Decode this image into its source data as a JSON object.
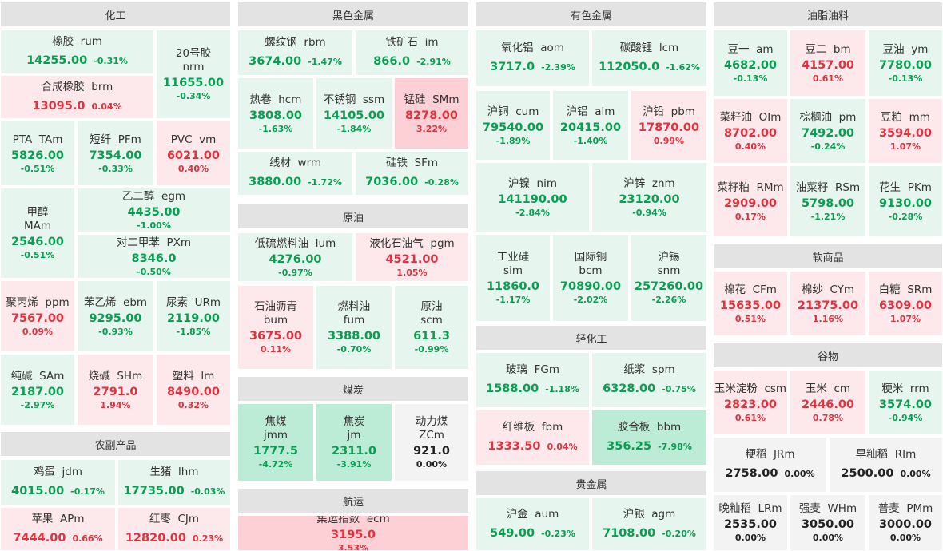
{
  "sections": {
    "chem": "化工",
    "agri": "农副产品",
    "ferrous": "黑色金属",
    "oil": "原油",
    "coal": "煤炭",
    "ship": "航运",
    "nonferrous": "有色金属",
    "light": "轻化工",
    "precious": "贵金属",
    "oils": "油脂油料",
    "soft": "软商品",
    "grain": "谷物"
  },
  "tiles": [
    {
      "name": "橡胶  rum",
      "price": "14255.00",
      "pct": "-0.31%"
    },
    {
      "name": "合成橡胶  brm",
      "price": "13095.0",
      "pct": "0.04%"
    },
    {
      "name": "20号胶\nnrm",
      "price": "11655.00",
      "pct": "-0.34%"
    },
    {
      "name": "PTA  TAm",
      "price": "5826.00",
      "pct": "-0.51%"
    },
    {
      "name": "短纤  PFm",
      "price": "7354.00",
      "pct": "-0.33%"
    },
    {
      "name": "PVC  vm",
      "price": "6021.00",
      "pct": "0.40%"
    },
    {
      "name": "甲醇\nMAm",
      "price": "2546.00",
      "pct": "-0.51%"
    },
    {
      "name": "乙二醇  egm",
      "price": "4435.00",
      "pct": "-1.00%"
    },
    {
      "name": "对二甲苯  PXm",
      "price": "8346.0",
      "pct": "-0.50%"
    },
    {
      "name": "聚丙烯  ppm",
      "price": "7567.00",
      "pct": "0.09%"
    },
    {
      "name": "苯乙烯  ebm",
      "price": "9295.00",
      "pct": "-0.93%"
    },
    {
      "name": "尿素  URm",
      "price": "2119.00",
      "pct": "-1.85%"
    },
    {
      "name": "纯碱  SAm",
      "price": "2187.00",
      "pct": "-2.97%"
    },
    {
      "name": "烧碱  SHm",
      "price": "2791.0",
      "pct": "1.94%"
    },
    {
      "name": "塑料  lm",
      "price": "8490.00",
      "pct": "0.32%"
    },
    {
      "name": "鸡蛋  jdm",
      "price": "4015.00",
      "pct": "-0.17%"
    },
    {
      "name": "生猪  lhm",
      "price": "17735.00",
      "pct": "-0.03%"
    },
    {
      "name": "苹果  APm",
      "price": "7444.00",
      "pct": "0.66%"
    },
    {
      "name": "红枣  CJm",
      "price": "12820.00",
      "pct": "0.23%"
    },
    {
      "name": "螺纹钢  rbm",
      "price": "3674.00",
      "pct": "-1.47%"
    },
    {
      "name": "铁矿石  im",
      "price": "866.0",
      "pct": "-2.91%"
    },
    {
      "name": "热卷  hcm",
      "price": "3808.00",
      "pct": "-1.63%"
    },
    {
      "name": "不锈钢  ssm",
      "price": "14105.00",
      "pct": "-1.84%"
    },
    {
      "name": "锰硅  SMm",
      "price": "8278.00",
      "pct": "3.22%"
    },
    {
      "name": "线材  wrm",
      "price": "3880.00",
      "pct": "-1.72%"
    },
    {
      "name": "硅铁  SFm",
      "price": "7036.00",
      "pct": "-0.28%"
    },
    {
      "name": "低硫燃料油  lum",
      "price": "4276.00",
      "pct": "-0.97%"
    },
    {
      "name": "液化石油气  pgm",
      "price": "4521.00",
      "pct": "1.05%"
    },
    {
      "name": "石油沥青\nbum",
      "price": "3675.00",
      "pct": "0.11%"
    },
    {
      "name": "燃料油\nfum",
      "price": "3388.00",
      "pct": "-0.70%"
    },
    {
      "name": "原油\nscm",
      "price": "611.3",
      "pct": "-0.99%"
    },
    {
      "name": "焦煤\njmm",
      "price": "1777.5",
      "pct": "-4.72%"
    },
    {
      "name": "焦炭\njm",
      "price": "2311.0",
      "pct": "-3.91%"
    },
    {
      "name": "动力煤\nZCm",
      "price": "921.0",
      "pct": "0.00%"
    },
    {
      "name": "集运指数  ecm",
      "price": "3195.0",
      "pct": "3.53%"
    },
    {
      "name": "氧化铝  aom",
      "price": "3717.0",
      "pct": "-2.39%"
    },
    {
      "name": "碳酸锂  lcm",
      "price": "112050.0",
      "pct": "-1.62%"
    },
    {
      "name": "沪铜  cum",
      "price": "79540.00",
      "pct": "-1.89%"
    },
    {
      "name": "沪铝  alm",
      "price": "20415.00",
      "pct": "-1.40%"
    },
    {
      "name": "沪铅  pbm",
      "price": "17870.00",
      "pct": "0.99%"
    },
    {
      "name": "沪镍  nim",
      "price": "141190.00",
      "pct": "-2.84%"
    },
    {
      "name": "沪锌  znm",
      "price": "23120.00",
      "pct": "-0.94%"
    },
    {
      "name": "工业硅\nsim",
      "price": "11860.0",
      "pct": "-1.17%"
    },
    {
      "name": "国际铜\nbcm",
      "price": "70890.00",
      "pct": "-2.02%"
    },
    {
      "name": "沪锡\nsnm",
      "price": "257260.00",
      "pct": "-2.26%"
    },
    {
      "name": "玻璃  FGm",
      "price": "1588.00",
      "pct": "-1.18%"
    },
    {
      "name": "纸浆  spm",
      "price": "6328.00",
      "pct": "-0.75%"
    },
    {
      "name": "纤维板  fbm",
      "price": "1333.50",
      "pct": "0.04%"
    },
    {
      "name": "胶合板  bbm",
      "price": "356.25",
      "pct": "-7.98%"
    },
    {
      "name": "沪金  aum",
      "price": "549.00",
      "pct": "-0.23%"
    },
    {
      "name": "沪银  agm",
      "price": "7108.00",
      "pct": "-0.20%"
    },
    {
      "name": "豆一  am",
      "price": "4682.00",
      "pct": "-0.13%"
    },
    {
      "name": "豆二  bm",
      "price": "4157.00",
      "pct": "0.61%"
    },
    {
      "name": "豆油  ym",
      "price": "7780.00",
      "pct": "-0.13%"
    },
    {
      "name": "菜籽油  OIm",
      "price": "8702.00",
      "pct": "0.40%"
    },
    {
      "name": "棕榈油  pm",
      "price": "7492.00",
      "pct": "-0.24%"
    },
    {
      "name": "豆粕  mm",
      "price": "3594.00",
      "pct": "1.07%"
    },
    {
      "name": "菜籽粕  RMm",
      "price": "2909.00",
      "pct": "0.17%"
    },
    {
      "name": "油菜籽  RSm",
      "price": "5798.00",
      "pct": "-1.21%"
    },
    {
      "name": "花生  PKm",
      "price": "9130.00",
      "pct": "-0.28%"
    },
    {
      "name": "棉花  CFm",
      "price": "15635.00",
      "pct": "0.51%"
    },
    {
      "name": "棉纱  CYm",
      "price": "21375.00",
      "pct": "1.16%"
    },
    {
      "name": "白糖  SRm",
      "price": "6309.00",
      "pct": "1.07%"
    },
    {
      "name": "玉米淀粉  csm",
      "price": "2823.00",
      "pct": "0.61%"
    },
    {
      "name": "玉米  cm",
      "price": "2446.00",
      "pct": "0.78%"
    },
    {
      "name": "粳米  rrm",
      "price": "3574.00",
      "pct": "-0.94%"
    },
    {
      "name": "粳稻  JRm",
      "price": "2758.00",
      "pct": "0.00%"
    },
    {
      "name": "早籼稻  RIm",
      "price": "2500.00",
      "pct": "0.00%"
    },
    {
      "name": "晚籼稻  LRm",
      "price": "2535.00",
      "pct": "0.00%"
    },
    {
      "name": "强麦  WHm",
      "price": "3050.00",
      "pct": "0.00%"
    },
    {
      "name": "普麦  PMm",
      "price": "3000.00",
      "pct": "0.00%"
    }
  ]
}
